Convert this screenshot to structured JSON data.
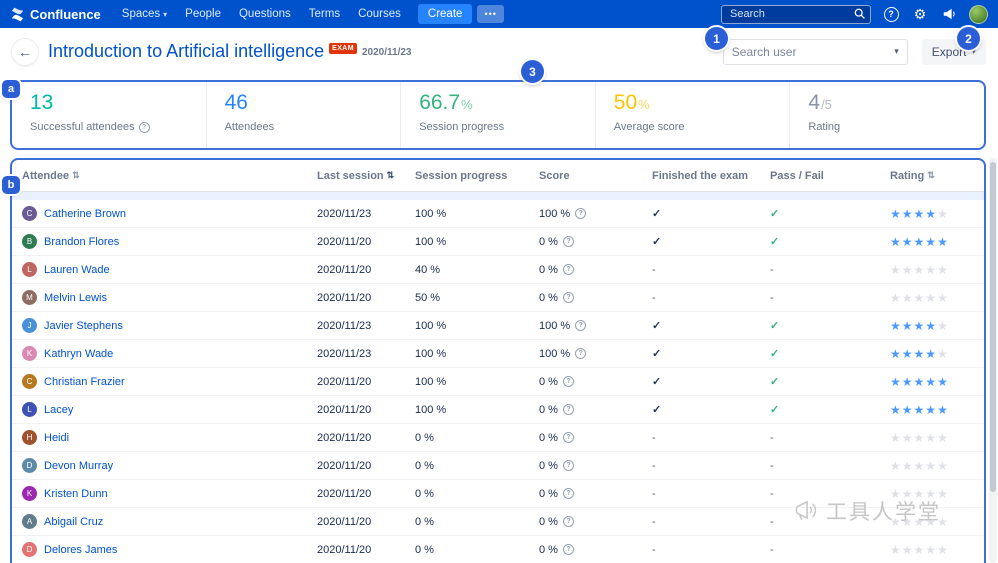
{
  "navbar": {
    "brand": "Confluence",
    "items": [
      "Spaces",
      "People",
      "Questions",
      "Terms",
      "Courses"
    ],
    "create_label": "Create",
    "more_label": "•••",
    "search_placeholder": "Search"
  },
  "header": {
    "title": "Introduction to Artificial intelligence",
    "exam_badge": "EXAM",
    "date": "2020/11/23",
    "search_user_placeholder": "Search user",
    "export_label": "Export"
  },
  "icons": {
    "back": "←",
    "chevron_down": "▾",
    "sort": "⇅",
    "check": "✓",
    "dash": "-",
    "star": "★",
    "help": "?",
    "info": "?",
    "gear": "⚙"
  },
  "annotations": {
    "circle1": "1",
    "circle2": "2",
    "circle3": "3",
    "label_a": "a",
    "label_b": "b",
    "color": "#2B5FD6"
  },
  "stats": [
    {
      "value": "13",
      "suffix": "",
      "label": "Successful attendees",
      "info": true,
      "color": "#00B8A9"
    },
    {
      "value": "46",
      "suffix": "",
      "label": "Attendees",
      "info": false,
      "color": "#2684FF"
    },
    {
      "value": "66.7",
      "suffix": "%",
      "label": "Session progress",
      "info": false,
      "color": "#36B37E"
    },
    {
      "value": "50",
      "suffix": "%",
      "label": "Average score",
      "info": false,
      "color": "#FFC400"
    },
    {
      "value": "4",
      "suffix": "/5",
      "label": "Rating",
      "info": false,
      "color": "#8993A4"
    }
  ],
  "table": {
    "columns": [
      {
        "label": "Attendee",
        "sortable": true
      },
      {
        "label": "Last session",
        "sortable": true
      },
      {
        "label": "Session progress",
        "sortable": false
      },
      {
        "label": "Score",
        "sortable": false
      },
      {
        "label": "Finished the exam",
        "sortable": false
      },
      {
        "label": "Pass / Fail",
        "sortable": false
      },
      {
        "label": "Rating",
        "sortable": true
      }
    ],
    "rows": [
      {
        "name": "Catherine Brown",
        "avatar_color": "#6B5B95",
        "last_session": "2020/11/23",
        "progress": "100 %",
        "score": "100 %",
        "finished": true,
        "pass": true,
        "rating": 4
      },
      {
        "name": "Brandon Flores",
        "avatar_color": "#2E7D52",
        "last_session": "2020/11/20",
        "progress": "100 %",
        "score": "0 %",
        "finished": true,
        "pass": true,
        "rating": 5
      },
      {
        "name": "Lauren Wade",
        "avatar_color": "#C0655F",
        "last_session": "2020/11/20",
        "progress": "40 %",
        "score": "0 %",
        "finished": false,
        "pass": false,
        "rating": 0
      },
      {
        "name": "Melvin Lewis",
        "avatar_color": "#8D6E63",
        "last_session": "2020/11/20",
        "progress": "50 %",
        "score": "0 %",
        "finished": false,
        "pass": false,
        "rating": 0
      },
      {
        "name": "Javier Stephens",
        "avatar_color": "#4A90D9",
        "last_session": "2020/11/23",
        "progress": "100 %",
        "score": "100 %",
        "finished": true,
        "pass": true,
        "rating": 4
      },
      {
        "name": "Kathryn Wade",
        "avatar_color": "#D98AB3",
        "last_session": "2020/11/23",
        "progress": "100 %",
        "score": "100 %",
        "finished": true,
        "pass": true,
        "rating": 4
      },
      {
        "name": "Christian Frazier",
        "avatar_color": "#B7791F",
        "last_session": "2020/11/20",
        "progress": "100 %",
        "score": "0 %",
        "finished": true,
        "pass": true,
        "rating": 5
      },
      {
        "name": "Lacey",
        "avatar_color": "#3F51B5",
        "last_session": "2020/11/20",
        "progress": "100 %",
        "score": "0 %",
        "finished": true,
        "pass": true,
        "rating": 5
      },
      {
        "name": "Heidi",
        "avatar_color": "#A0522D",
        "last_session": "2020/11/20",
        "progress": "0 %",
        "score": "0 %",
        "finished": false,
        "pass": false,
        "rating": 0
      },
      {
        "name": "Devon Murray",
        "avatar_color": "#5D8AA8",
        "last_session": "2020/11/20",
        "progress": "0 %",
        "score": "0 %",
        "finished": false,
        "pass": false,
        "rating": 0
      },
      {
        "name": "Kristen Dunn",
        "avatar_color": "#9C27B0",
        "last_session": "2020/11/20",
        "progress": "0 %",
        "score": "0 %",
        "finished": false,
        "pass": false,
        "rating": 0
      },
      {
        "name": "Abigail Cruz",
        "avatar_color": "#607D8B",
        "last_session": "2020/11/20",
        "progress": "0 %",
        "score": "0 %",
        "finished": false,
        "pass": false,
        "rating": 0
      },
      {
        "name": "Delores James",
        "avatar_color": "#E57373",
        "last_session": "2020/11/20",
        "progress": "0 %",
        "score": "0 %",
        "finished": false,
        "pass": false,
        "rating": 0
      }
    ]
  },
  "watermark": "工具人学堂"
}
